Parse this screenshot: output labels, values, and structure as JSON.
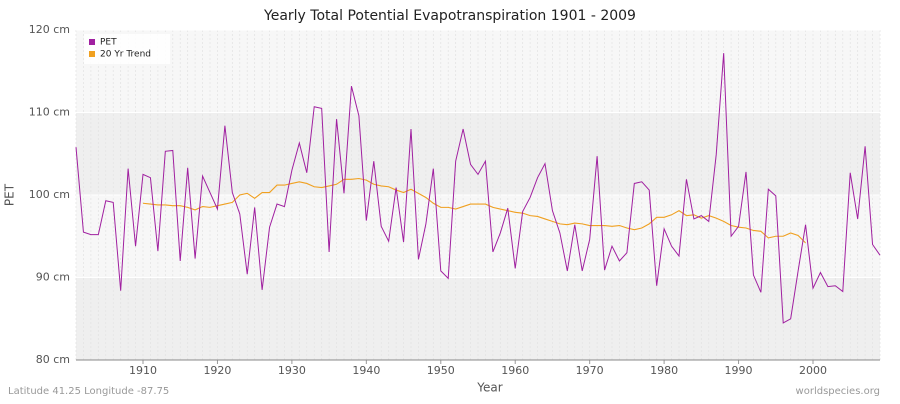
{
  "chart_data": {
    "type": "line",
    "title": "Yearly Total Potential Evapotranspiration 1901 - 2009",
    "x_label": "Year",
    "y_label": "PET",
    "footer_left": "Latitude 41.25 Longitude -87.75",
    "footer_right": "worldspecies.org",
    "x": [
      1901,
      1902,
      1903,
      1904,
      1905,
      1906,
      1907,
      1908,
      1909,
      1910,
      1911,
      1912,
      1913,
      1914,
      1915,
      1916,
      1917,
      1918,
      1919,
      1920,
      1921,
      1922,
      1923,
      1924,
      1925,
      1926,
      1927,
      1928,
      1929,
      1930,
      1931,
      1932,
      1933,
      1934,
      1935,
      1936,
      1937,
      1938,
      1939,
      1940,
      1941,
      1942,
      1943,
      1944,
      1945,
      1946,
      1947,
      1948,
      1949,
      1950,
      1951,
      1952,
      1953,
      1954,
      1955,
      1956,
      1957,
      1958,
      1959,
      1960,
      1961,
      1962,
      1963,
      1964,
      1965,
      1966,
      1967,
      1968,
      1969,
      1970,
      1971,
      1972,
      1973,
      1974,
      1975,
      1976,
      1977,
      1978,
      1979,
      1980,
      1981,
      1982,
      1983,
      1984,
      1985,
      1986,
      1987,
      1988,
      1989,
      1990,
      1991,
      1992,
      1993,
      1994,
      1995,
      1996,
      1997,
      1998,
      1999,
      2000,
      2001,
      2002,
      2003,
      2004,
      2005,
      2006,
      2007,
      2008,
      2009
    ],
    "series": [
      {
        "name": "PET",
        "color": "#a020a0",
        "values": [
          105.8,
          95.5,
          95.2,
          95.2,
          99.3,
          99.1,
          88.4,
          103.2,
          93.8,
          102.5,
          102.1,
          93.2,
          105.3,
          105.4,
          92.0,
          103.3,
          92.3,
          102.3,
          100.3,
          98.3,
          108.4,
          100.3,
          97.7,
          90.4,
          98.5,
          88.5,
          96.1,
          98.9,
          98.6,
          103.0,
          106.3,
          102.7,
          110.7,
          110.5,
          93.1,
          109.2,
          100.2,
          113.2,
          109.6,
          96.9,
          104.1,
          96.2,
          94.4,
          100.9,
          94.3,
          108.0,
          92.2,
          96.5,
          103.2,
          90.8,
          89.9,
          104.1,
          108.0,
          103.7,
          102.5,
          104.1,
          93.1,
          95.4,
          98.4,
          91.1,
          98.0,
          99.7,
          102.1,
          103.8,
          98.1,
          95.4,
          90.8,
          96.4,
          90.8,
          94.6,
          104.7,
          90.9,
          93.8,
          92.0,
          93.0,
          101.4,
          101.6,
          100.6,
          89.0,
          95.9,
          93.8,
          92.6,
          101.9,
          97.1,
          97.5,
          96.8,
          104.9,
          117.2,
          95.0,
          96.2,
          102.8,
          90.3,
          88.2,
          100.7,
          99.9,
          84.5,
          85.0,
          90.8,
          96.4,
          88.7,
          90.6,
          88.9,
          89.0,
          88.3,
          102.7,
          97.1,
          105.9,
          94.0,
          92.7
        ]
      },
      {
        "name": "20 Yr Trend",
        "color": "#f0a020",
        "values": [
          null,
          null,
          null,
          null,
          null,
          null,
          null,
          null,
          null,
          99.0,
          98.9,
          98.8,
          98.8,
          98.7,
          98.7,
          98.5,
          98.2,
          98.6,
          98.5,
          98.7,
          98.9,
          99.1,
          100.0,
          100.2,
          99.6,
          100.3,
          100.3,
          101.2,
          101.2,
          101.4,
          101.6,
          101.4,
          101.0,
          100.9,
          101.1,
          101.3,
          101.9,
          101.9,
          102.0,
          101.8,
          101.3,
          101.1,
          101.0,
          100.6,
          100.3,
          100.7,
          100.2,
          99.7,
          99.0,
          98.5,
          98.5,
          98.3,
          98.6,
          98.9,
          98.9,
          98.9,
          98.5,
          98.3,
          98.1,
          97.9,
          97.8,
          97.5,
          97.4,
          97.1,
          96.8,
          96.5,
          96.4,
          96.6,
          96.5,
          96.3,
          96.3,
          96.3,
          96.2,
          96.3,
          96.0,
          95.8,
          96.0,
          96.5,
          97.3,
          97.3,
          97.6,
          98.1,
          97.5,
          97.6,
          97.2,
          97.5,
          97.2,
          96.8,
          96.3,
          96.1,
          96.0,
          95.7,
          95.6,
          94.8,
          95.0,
          95.0,
          95.4,
          95.1,
          94.2,
          null,
          null,
          null,
          null,
          null,
          null,
          null,
          null,
          null,
          null
        ]
      }
    ],
    "xlim": [
      1901,
      2009
    ],
    "xticks": [
      1910,
      1920,
      1930,
      1940,
      1950,
      1960,
      1970,
      1980,
      1990,
      2000
    ],
    "ylim": [
      80,
      120
    ],
    "yticks": [
      {
        "value": 80,
        "label": "80 cm"
      },
      {
        "value": 90,
        "label": "90 cm"
      },
      {
        "value": 100,
        "label": "100 cm"
      },
      {
        "value": 110,
        "label": "110 cm"
      },
      {
        "value": 120,
        "label": "120 cm"
      }
    ],
    "grid": true,
    "legend": "top-left"
  }
}
